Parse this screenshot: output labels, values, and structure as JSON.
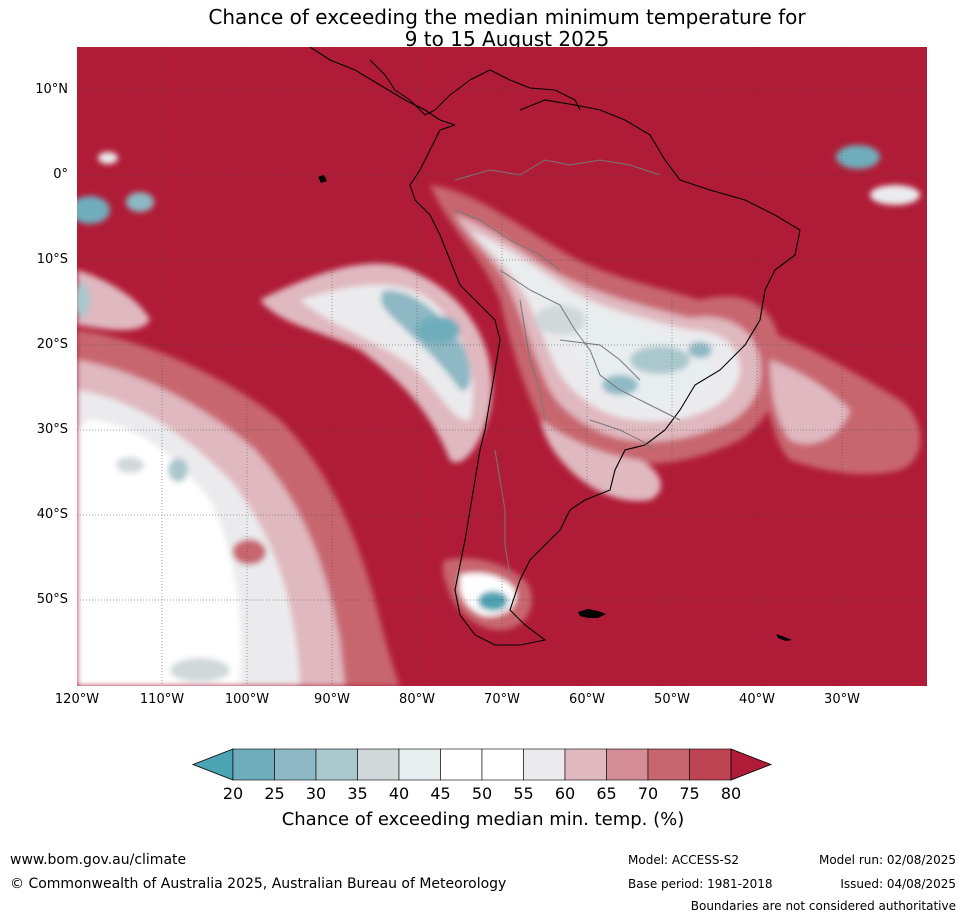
{
  "title": {
    "line1": "Chance of exceeding the median minimum temperature for",
    "line2": "9 to 15 August 2025"
  },
  "colors": {
    "high": "#b01c37",
    "low": "#4ba3b4",
    "land_border": "#000000",
    "country_border": "#777777"
  },
  "lat_labels": [
    "10°N",
    "0°",
    "10°S",
    "20°S",
    "30°S",
    "40°S",
    "50°S"
  ],
  "lon_labels": [
    "120°W",
    "110°W",
    "100°W",
    "90°W",
    "80°W",
    "70°W",
    "60°W",
    "50°W",
    "40°W",
    "30°W"
  ],
  "colorbar": {
    "ticks": [
      "20",
      "25",
      "30",
      "35",
      "40",
      "45",
      "50",
      "55",
      "60",
      "65",
      "70",
      "75",
      "80"
    ],
    "colors": [
      "#4ba3b4",
      "#6fadbc",
      "#8db8c4",
      "#aac8cc",
      "#d0d8da",
      "#e8eef0",
      "#ffffff",
      "#ffffff",
      "#ebebed",
      "#e0b8bf",
      "#d48d97",
      "#c8666f",
      "#bf4453",
      "#b01c37"
    ],
    "label": "Chance of exceeding median min. temp. (%)"
  },
  "footer": {
    "website": "www.bom.gov.au/climate",
    "copyright": "© Commonwealth of Australia 2025, Australian Bureau of Meteorology",
    "model": "Model: ACCESS-S2",
    "base_period": "Base period: 1981-2018",
    "model_run": "Model run: 02/08/2025",
    "issued": "Issued: 04/08/2025",
    "boundaries_note": "Boundaries are not considered authoritative"
  }
}
